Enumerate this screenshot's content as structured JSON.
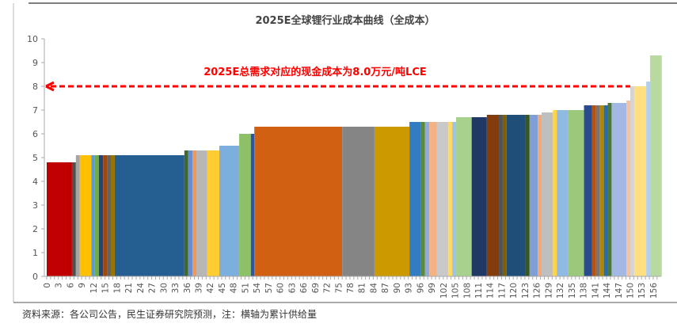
{
  "chart_data": {
    "type": "bar",
    "subtype": "cost-curve (variable-width bars)",
    "title": "2025E全球锂行业成本曲线（全成本）",
    "xlabel": "",
    "ylabel": "",
    "xlim": [
      0,
      158
    ],
    "ylim": [
      0,
      10
    ],
    "x_ticks": [
      0,
      3,
      6,
      9,
      12,
      15,
      18,
      21,
      24,
      27,
      30,
      33,
      36,
      39,
      42,
      45,
      48,
      51,
      54,
      57,
      60,
      63,
      66,
      69,
      72,
      75,
      78,
      81,
      84,
      87,
      90,
      93,
      96,
      99,
      102,
      105,
      108,
      111,
      114,
      117,
      120,
      123,
      126,
      129,
      132,
      135,
      138,
      141,
      144,
      147,
      150,
      153,
      156
    ],
    "y_ticks": [
      0,
      1,
      2,
      3,
      4,
      5,
      6,
      7,
      8,
      9,
      10
    ],
    "grid": false,
    "legend": "none",
    "reference_line": {
      "y": 8.0,
      "color": "#ff0000",
      "style": "dashed-arrow",
      "label": "2025E总需求对应的现金成本为8.0万元/吨LCE"
    },
    "bars": [
      {
        "x0": 0,
        "x1": 6.5,
        "value": 4.8,
        "color": "#c00000"
      },
      {
        "x0": 6.5,
        "x1": 7.5,
        "value": 4.8,
        "color": "#505050"
      },
      {
        "x0": 7.5,
        "x1": 8.5,
        "value": 5.1,
        "color": "#a5a5a5"
      },
      {
        "x0": 8.5,
        "x1": 11.5,
        "value": 5.1,
        "color": "#ffc000"
      },
      {
        "x0": 11.5,
        "x1": 12.4,
        "value": 5.1,
        "color": "#5b9bd5"
      },
      {
        "x0": 12.4,
        "x1": 13.4,
        "value": 5.1,
        "color": "#70ad47"
      },
      {
        "x0": 13.4,
        "x1": 14.5,
        "value": 5.1,
        "color": "#264478"
      },
      {
        "x0": 14.5,
        "x1": 15.5,
        "value": 5.1,
        "color": "#9e480e"
      },
      {
        "x0": 15.5,
        "x1": 16.5,
        "value": 5.1,
        "color": "#636363"
      },
      {
        "x0": 16.5,
        "x1": 17.5,
        "value": 5.1,
        "color": "#997300"
      },
      {
        "x0": 17.5,
        "x1": 35.4,
        "value": 5.1,
        "color": "#255e91"
      },
      {
        "x0": 35.4,
        "x1": 36.4,
        "value": 5.3,
        "color": "#43682b"
      },
      {
        "x0": 36.4,
        "x1": 37.5,
        "value": 5.3,
        "color": "#698ed0"
      },
      {
        "x0": 37.5,
        "x1": 38.5,
        "value": 5.3,
        "color": "#f1975a"
      },
      {
        "x0": 38.5,
        "x1": 41.3,
        "value": 5.3,
        "color": "#b7b7b7"
      },
      {
        "x0": 41.3,
        "x1": 44.4,
        "value": 5.3,
        "color": "#ffcd33"
      },
      {
        "x0": 44.4,
        "x1": 49.5,
        "value": 5.5,
        "color": "#7cafdd"
      },
      {
        "x0": 49.5,
        "x1": 52.5,
        "value": 6.0,
        "color": "#8cc168"
      },
      {
        "x0": 52.5,
        "x1": 53.4,
        "value": 6.0,
        "color": "#2f55a0"
      },
      {
        "x0": 53.4,
        "x1": 76,
        "value": 6.3,
        "color": "#d26012"
      },
      {
        "x0": 76,
        "x1": 84.3,
        "value": 6.3,
        "color": "#858585"
      },
      {
        "x0": 84.3,
        "x1": 93.3,
        "value": 6.3,
        "color": "#cc9a00"
      },
      {
        "x0": 93.3,
        "x1": 96.3,
        "value": 6.5,
        "color": "#327dc2"
      },
      {
        "x0": 96.3,
        "x1": 97.3,
        "value": 6.5,
        "color": "#5a8a39"
      },
      {
        "x0": 97.3,
        "x1": 98.4,
        "value": 6.5,
        "color": "#8faadc"
      },
      {
        "x0": 98.4,
        "x1": 100.3,
        "value": 6.5,
        "color": "#f4b183"
      },
      {
        "x0": 100.3,
        "x1": 103.3,
        "value": 6.5,
        "color": "#c9c9c9"
      },
      {
        "x0": 103.3,
        "x1": 104.3,
        "value": 6.5,
        "color": "#ffd966"
      },
      {
        "x0": 104.3,
        "x1": 105.3,
        "value": 6.5,
        "color": "#9dc3e6"
      },
      {
        "x0": 105.3,
        "x1": 109.3,
        "value": 6.7,
        "color": "#a9d18e"
      },
      {
        "x0": 109.3,
        "x1": 113.2,
        "value": 6.7,
        "color": "#203864"
      },
      {
        "x0": 113.2,
        "x1": 116.3,
        "value": 6.8,
        "color": "#843c0c"
      },
      {
        "x0": 116.3,
        "x1": 117.3,
        "value": 6.8,
        "color": "#525252"
      },
      {
        "x0": 117.3,
        "x1": 118.3,
        "value": 6.8,
        "color": "#7f6000"
      },
      {
        "x0": 118.3,
        "x1": 123.2,
        "value": 6.8,
        "color": "#1f4e79"
      },
      {
        "x0": 123.2,
        "x1": 124.2,
        "value": 6.8,
        "color": "#385723"
      },
      {
        "x0": 124.2,
        "x1": 126.3,
        "value": 6.8,
        "color": "#7f9fd6"
      },
      {
        "x0": 126.3,
        "x1": 127.3,
        "value": 6.8,
        "color": "#f4a777"
      },
      {
        "x0": 127.3,
        "x1": 130.2,
        "value": 6.9,
        "color": "#bfbfbf"
      },
      {
        "x0": 130.2,
        "x1": 131.2,
        "value": 7.0,
        "color": "#ffd346"
      },
      {
        "x0": 131.2,
        "x1": 134.2,
        "value": 7.0,
        "color": "#8fbbe2"
      },
      {
        "x0": 134.2,
        "x1": 138.2,
        "value": 7.0,
        "color": "#9cc87c"
      },
      {
        "x0": 138.2,
        "x1": 140.3,
        "value": 7.2,
        "color": "#2b4c8c"
      },
      {
        "x0": 140.3,
        "x1": 141.3,
        "value": 7.2,
        "color": "#b8510d"
      },
      {
        "x0": 141.3,
        "x1": 142.3,
        "value": 7.2,
        "color": "#747474"
      },
      {
        "x0": 142.3,
        "x1": 143.3,
        "value": 7.2,
        "color": "#b38600"
      },
      {
        "x0": 143.3,
        "x1": 144.3,
        "value": 7.2,
        "color": "#2a6cab"
      },
      {
        "x0": 144.3,
        "x1": 145.3,
        "value": 7.3,
        "color": "#4e7932"
      },
      {
        "x0": 145.3,
        "x1": 149.1,
        "value": 7.3,
        "color": "#a3b8e2"
      },
      {
        "x0": 149.1,
        "x1": 150.1,
        "value": 7.4,
        "color": "#f6c1a0"
      },
      {
        "x0": 150.1,
        "x1": 151.1,
        "value": 8.0,
        "color": "#d4d4d4"
      },
      {
        "x0": 151.1,
        "x1": 154.2,
        "value": 8.0,
        "color": "#ffdf80"
      },
      {
        "x0": 154.2,
        "x1": 155.2,
        "value": 8.2,
        "color": "#b4cfec"
      },
      {
        "x0": 155.2,
        "x1": 158.2,
        "value": 9.3,
        "color": "#b8daa0"
      }
    ]
  },
  "source_note": "资料来源：各公司公告，民生证券研究院预测，注：横轴为累计供给量"
}
